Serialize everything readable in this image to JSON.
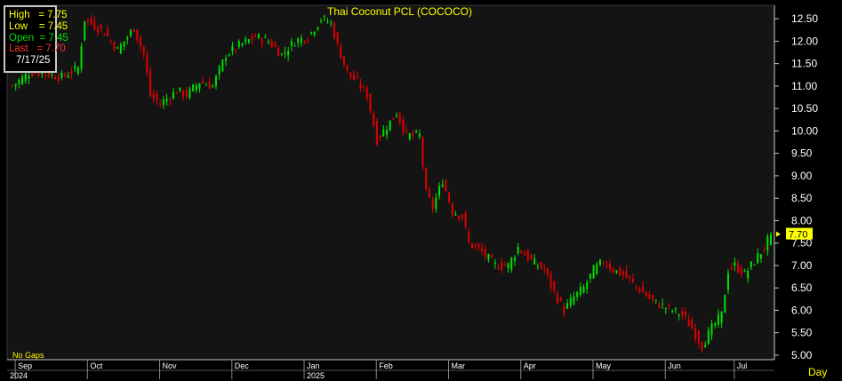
{
  "colors": {
    "background": "#000000",
    "plot_bg": "#141414",
    "up": "#00e000",
    "down": "#e00000",
    "title": "#ffff00",
    "axis_text": "#ffffff",
    "grid": "#2a2a2a",
    "last_badge": "#ffff00"
  },
  "ohlc_box": {
    "high": "High   = 7.75",
    "low": "Low    = 7.45",
    "open": "Open  = 7.45",
    "last": "Last   = 7.70",
    "date": "7/17/25"
  },
  "footer": {
    "no_gaps": "No  Gaps",
    "period": "Day"
  },
  "chart_data": {
    "type": "candlestick",
    "title": "Thai  Coconut  PCL  (COCOCO)",
    "ylim": [
      4.9,
      12.8
    ],
    "y_ticks": [
      "12.50",
      "12.00",
      "11.50",
      "11.00",
      "10.50",
      "10.00",
      "9.50",
      "9.00",
      "8.50",
      "8.00",
      "7.50",
      "7.00",
      "6.50",
      "6.00",
      "5.50",
      "5.00"
    ],
    "x_months": [
      "Sep",
      "Oct",
      "Nov",
      "Dec",
      "Jan",
      "Feb",
      "Mar",
      "Apr",
      "May",
      "Jun",
      "Jul"
    ],
    "x_years": [
      "2024",
      "2025"
    ],
    "last_price_label": "7.70",
    "grid": false,
    "price_path": [
      [
        0,
        11.0
      ],
      [
        5,
        11.3
      ],
      [
        9,
        11.3
      ],
      [
        15,
        11.2
      ],
      [
        20,
        11.4
      ],
      [
        22,
        12.5
      ],
      [
        28,
        12.2
      ],
      [
        32,
        11.8
      ],
      [
        37,
        12.3
      ],
      [
        40,
        11.7
      ],
      [
        42,
        10.8
      ],
      [
        45,
        10.6
      ],
      [
        50,
        10.9
      ],
      [
        53,
        10.8
      ],
      [
        57,
        11.1
      ],
      [
        61,
        11.0
      ],
      [
        65,
        11.7
      ],
      [
        69,
        11.9
      ],
      [
        74,
        12.1
      ],
      [
        78,
        12.0
      ],
      [
        82,
        11.7
      ],
      [
        86,
        12.0
      ],
      [
        90,
        12.1
      ],
      [
        94,
        12.5
      ],
      [
        97,
        12.4
      ],
      [
        99,
        11.9
      ],
      [
        102,
        11.3
      ],
      [
        106,
        11.0
      ],
      [
        108,
        10.8
      ],
      [
        111,
        9.8
      ],
      [
        114,
        10.1
      ],
      [
        117,
        10.4
      ],
      [
        120,
        9.9
      ],
      [
        124,
        9.9
      ],
      [
        126,
        8.6
      ],
      [
        128,
        8.3
      ],
      [
        131,
        8.9
      ],
      [
        134,
        8.2
      ],
      [
        137,
        8.1
      ],
      [
        139,
        7.5
      ],
      [
        143,
        7.3
      ],
      [
        147,
        7.0
      ],
      [
        151,
        7.0
      ],
      [
        154,
        7.4
      ],
      [
        158,
        7.1
      ],
      [
        162,
        6.9
      ],
      [
        165,
        6.4
      ],
      [
        168,
        6.0
      ],
      [
        171,
        6.3
      ],
      [
        174,
        6.5
      ],
      [
        177,
        6.9
      ],
      [
        180,
        7.1
      ],
      [
        183,
        6.9
      ],
      [
        186,
        6.8
      ],
      [
        189,
        6.6
      ],
      [
        192,
        6.4
      ],
      [
        195,
        6.2
      ],
      [
        198,
        6.1
      ],
      [
        201,
        6.0
      ],
      [
        204,
        5.9
      ],
      [
        207,
        5.6
      ],
      [
        210,
        5.2
      ],
      [
        213,
        5.6
      ],
      [
        216,
        5.9
      ],
      [
        218,
        6.9
      ],
      [
        220,
        7.0
      ],
      [
        223,
        6.8
      ],
      [
        226,
        7.1
      ],
      [
        229,
        7.4
      ],
      [
        231,
        7.7
      ]
    ]
  }
}
